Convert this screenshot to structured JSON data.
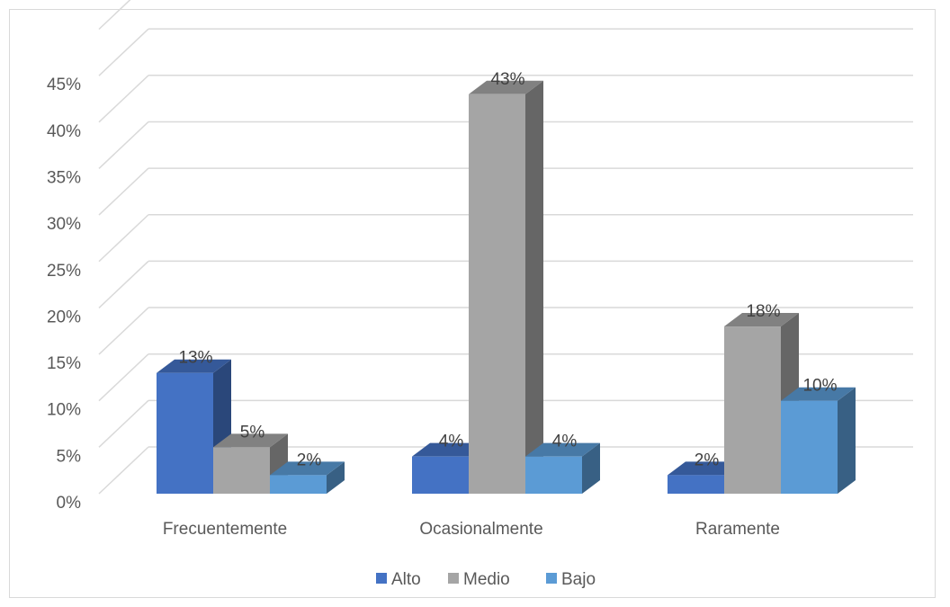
{
  "chart_data": {
    "type": "bar",
    "style": "3d-clustered-column",
    "categories": [
      "Frecuentemente",
      "Ocasionalmente",
      "Raramente"
    ],
    "series": [
      {
        "name": "Alto",
        "values": [
          13,
          4,
          2
        ],
        "labels": [
          "13%",
          "4%",
          "2%"
        ],
        "color": "#4472c4"
      },
      {
        "name": "Medio",
        "values": [
          5,
          43,
          18
        ],
        "labels": [
          "5%",
          "43%",
          "18%"
        ],
        "color": "#a5a5a5"
      },
      {
        "name": "Bajo",
        "values": [
          2,
          4,
          10
        ],
        "labels": [
          "2%",
          "4%",
          "10%"
        ],
        "color": "#5b9bd5"
      }
    ],
    "y_ticks": [
      "0%",
      "5%",
      "10%",
      "15%",
      "20%",
      "25%",
      "30%",
      "35%",
      "40%",
      "45%"
    ],
    "ylim": [
      0,
      45
    ],
    "grid": true,
    "legend": "bottom"
  }
}
